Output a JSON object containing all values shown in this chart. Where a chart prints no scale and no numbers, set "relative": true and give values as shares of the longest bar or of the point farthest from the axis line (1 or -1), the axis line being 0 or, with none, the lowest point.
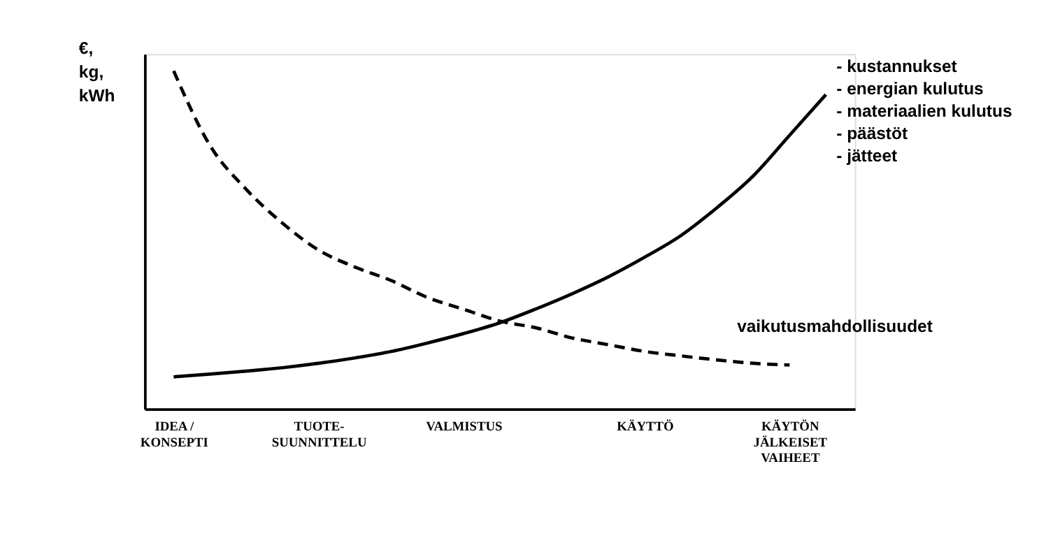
{
  "chart_data": {
    "type": "line",
    "relative": true,
    "ylabel": "€,\nkg,\nkWh",
    "categories": [
      "IDEA /\nKONSEPTI",
      null,
      null,
      null,
      "TUOTE-\nSUUNNITTELU",
      null,
      null,
      null,
      "VALMISTUS",
      null,
      null,
      null,
      null,
      "KÄYTTÖ",
      null,
      null,
      null,
      "KÄYTÖN\nJÄLKEISET\nVAIHEET",
      null
    ],
    "legend": false,
    "grid": false,
    "series": [
      {
        "name": "- kustannukset\n- energian kulutus\n- materiaalien kulutus\n- päästöt\n- jätteet",
        "color": "#000000",
        "line_style": "solid",
        "values": [
          0.095,
          0.103,
          0.112,
          0.122,
          0.135,
          0.151,
          0.17,
          0.195,
          0.223,
          0.255,
          0.296,
          0.341,
          0.391,
          0.449,
          0.513,
          0.596,
          0.69,
          0.81,
          0.93
        ]
      },
      {
        "name": "vaikutusmahdollisuudet",
        "color": "#000000",
        "line_style": "dashed",
        "values": [
          1.0,
          0.78,
          0.65,
          0.55,
          0.47,
          0.42,
          0.38,
          0.33,
          0.295,
          0.26,
          0.24,
          0.21,
          0.19,
          0.17,
          0.157,
          0.145,
          0.135,
          0.13,
          null
        ]
      }
    ]
  }
}
